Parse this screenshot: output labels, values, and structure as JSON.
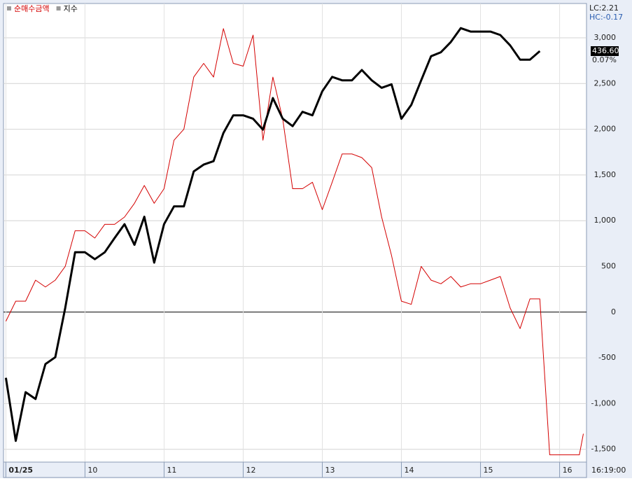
{
  "chart_data": {
    "type": "line",
    "x": [
      9.0,
      9.125,
      9.25,
      9.375,
      9.5,
      9.625,
      9.75,
      9.875,
      10.0,
      10.125,
      10.25,
      10.375,
      10.5,
      10.625,
      10.75,
      10.875,
      11.0,
      11.125,
      11.25,
      11.375,
      11.5,
      11.625,
      11.75,
      11.875,
      12.0,
      12.125,
      12.25,
      12.375,
      12.5,
      12.625,
      12.75,
      12.875,
      13.0,
      13.125,
      13.25,
      13.375,
      13.5,
      13.625,
      13.75,
      13.875,
      14.0,
      14.125,
      14.25,
      14.375,
      14.5,
      14.625,
      14.75,
      14.875,
      15.0,
      15.125,
      15.25,
      15.375,
      15.5,
      15.625,
      15.75,
      15.875,
      16.0,
      16.125,
      16.25,
      16.3
    ],
    "series": [
      {
        "name": "순매수금액",
        "color": "#d40000",
        "axis": "y",
        "values": [
          -100,
          120,
          120,
          350,
          275,
          350,
          500,
          890,
          890,
          810,
          960,
          960,
          1040,
          1190,
          1385,
          1190,
          1350,
          1880,
          2000,
          2570,
          2720,
          2570,
          3100,
          2720,
          2690,
          3030,
          1880,
          2570,
          2110,
          1350,
          1350,
          1420,
          1120,
          1420,
          1730,
          1730,
          1690,
          1580,
          1040,
          620,
          120,
          85,
          500,
          350,
          310,
          390,
          275,
          310,
          310,
          350,
          390,
          45,
          -180,
          145,
          145,
          -1560,
          -1560,
          -1560,
          -1560,
          -1330
        ]
      },
      {
        "name": "지수",
        "color": "#000000",
        "axis": "y2",
        "values": [
          430.87,
          429.77,
          430.62,
          430.5,
          431.11,
          431.23,
          432.09,
          433.06,
          433.06,
          432.94,
          433.06,
          433.31,
          433.55,
          433.19,
          433.68,
          432.88,
          433.55,
          433.86,
          433.86,
          434.47,
          434.59,
          434.65,
          435.14,
          435.45,
          435.45,
          435.39,
          435.2,
          435.75,
          435.39,
          435.26,
          435.51,
          435.45,
          435.87,
          436.12,
          436.06,
          436.06,
          436.24,
          436.06,
          435.93,
          435.99,
          435.39,
          435.63,
          436.06,
          436.48,
          436.55,
          436.73,
          436.97,
          436.91,
          436.91,
          436.91,
          436.85,
          436.67,
          436.42,
          436.42,
          436.57,
          null,
          null,
          null,
          null,
          null
        ]
      }
    ],
    "xlim": [
      8.97,
      16.34
    ],
    "xticks": [
      {
        "value": 9,
        "label": "01/25"
      },
      10,
      11,
      12,
      13,
      14,
      15,
      16
    ],
    "ylim": [
      -1640,
      3375
    ],
    "yticks": [
      {
        "value": -1500,
        "label": "-1,500"
      },
      {
        "value": -1000,
        "label": "-1,000"
      },
      -500,
      0,
      500,
      {
        "value": 1000,
        "label": "1,000"
      },
      {
        "value": 1500,
        "label": "1,500"
      },
      {
        "value": 2000,
        "label": "2,000"
      },
      {
        "value": 2500,
        "label": "2,500"
      },
      {
        "value": 3000,
        "label": "3,000"
      }
    ],
    "y2lim": [
      429.4,
      437.4
    ],
    "grid": true,
    "price_label": "436.60",
    "change_label": "0.07%",
    "lc_label": "LC:2.21",
    "hc_label": "HC:-0.17",
    "time_label": "16:19:00"
  }
}
